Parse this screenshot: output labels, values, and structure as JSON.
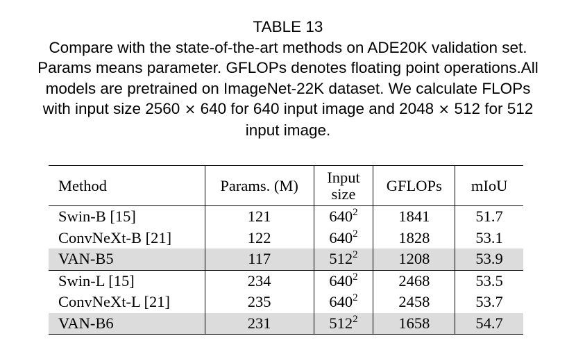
{
  "caption": {
    "title": "TABLE 13",
    "line1": "Compare with the state-of-the-art methods on ADE20K validation set.",
    "line2": "Params means parameter. GFLOPs denotes floating point operations.All",
    "line3": "models are pretrained on ImageNet-22K dataset. We calculate FLOPs",
    "line4_a": "with input size 2560",
    "times_symbol": "×",
    "line4_b": "640 for 640 input image and 2048",
    "line4_c": "512 for 512",
    "line5": "input image."
  },
  "table": {
    "headers": {
      "method": "Method",
      "params": "Params. (M)",
      "input_size_1": "Input",
      "input_size_2": "size",
      "gflops": "GFLOPs",
      "miou": "mIoU"
    },
    "rows": [
      {
        "method": "Swin-B  [15]",
        "params": "121",
        "size_base": "640",
        "size_exp": "2",
        "gflops": "1841",
        "miou": "51.7"
      },
      {
        "method": "ConvNeXt-B  [21]",
        "params": "122",
        "size_base": "640",
        "size_exp": "2",
        "gflops": "1828",
        "miou": "53.1"
      },
      {
        "method": "VAN-B5",
        "params": "117",
        "size_base": "512",
        "size_exp": "2",
        "gflops": "1208",
        "miou": "53.9"
      },
      {
        "method": "Swin-L  [15]",
        "params": "234",
        "size_base": "640",
        "size_exp": "2",
        "gflops": "2468",
        "miou": "53.5"
      },
      {
        "method": "ConvNeXt-L  [21]",
        "params": "235",
        "size_base": "640",
        "size_exp": "2",
        "gflops": "2458",
        "miou": "53.7"
      },
      {
        "method": "VAN-B6",
        "params": "231",
        "size_base": "512",
        "size_exp": "2",
        "gflops": "1658",
        "miou": "54.7"
      }
    ],
    "highlight_color": "#dcdcdc"
  }
}
